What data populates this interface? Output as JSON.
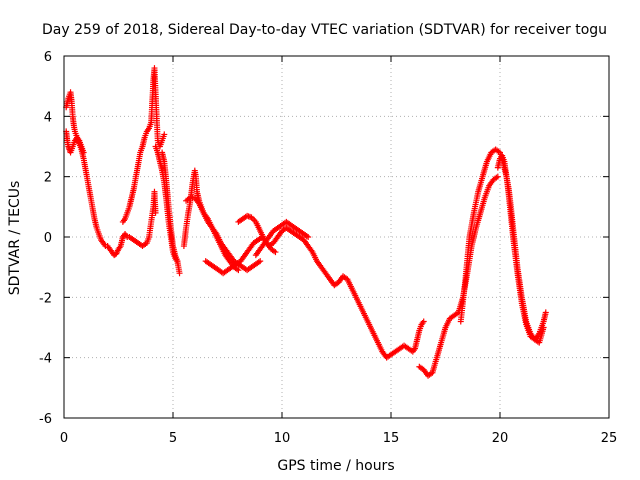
{
  "chart_data": {
    "type": "scatter",
    "title": "Day 259 of 2018, Sidereal Day-to-day VTEC variation (SDTVAR) for receiver togu",
    "xlabel": "GPS time / hours",
    "ylabel": "SDTVAR / TECUs",
    "xlim": [
      0,
      25
    ],
    "ylim": [
      -6,
      6
    ],
    "xticks": [
      0,
      5,
      10,
      15,
      20,
      25
    ],
    "yticks": [
      -6,
      -4,
      -2,
      0,
      2,
      4,
      6
    ],
    "xtick_labels": [
      "0",
      "5",
      "10",
      "15",
      "20",
      "25"
    ],
    "ytick_labels": [
      "-6",
      "-4",
      "-2",
      "0",
      "2",
      "4",
      "6"
    ],
    "grid": true,
    "marker": "+",
    "series": [
      {
        "name": "SDTVAR",
        "color": "#ff0000",
        "segments": [
          {
            "x": [
              0.1,
              0.2,
              0.3,
              0.35,
              0.4,
              0.45,
              0.5,
              0.6,
              0.7,
              0.8,
              0.9,
              1.0,
              1.1,
              1.2,
              1.3,
              1.4,
              1.5,
              1.6,
              1.7,
              1.8,
              1.9,
              2.0,
              2.1,
              2.2,
              2.3,
              2.4,
              2.5,
              2.6,
              2.7
            ],
            "y": [
              4.3,
              4.6,
              4.8,
              4.5,
              4.0,
              3.7,
              3.5,
              3.3,
              3.1,
              2.9,
              2.6,
              2.2,
              1.8,
              1.4,
              1.0,
              0.6,
              0.3,
              0.1,
              -0.1,
              -0.2,
              -0.3,
              -0.3,
              -0.4,
              -0.5,
              -0.6,
              -0.55,
              -0.4,
              -0.3,
              0.0
            ]
          },
          {
            "x": [
              0.1,
              0.15,
              0.2,
              0.25,
              0.3,
              0.4,
              0.5,
              0.6,
              0.7,
              0.8,
              0.9
            ],
            "y": [
              3.5,
              3.2,
              3.0,
              2.9,
              2.8,
              3.0,
              3.2,
              3.3,
              3.2,
              3.0,
              2.8
            ]
          },
          {
            "x": [
              2.7,
              2.8,
              2.9,
              3.0,
              3.1,
              3.2,
              3.3,
              3.4,
              3.5,
              3.6,
              3.7,
              3.8,
              3.9,
              4.0,
              4.05,
              4.1,
              4.15,
              4.2,
              4.25,
              4.3,
              4.4,
              4.5,
              4.6
            ],
            "y": [
              0.5,
              0.6,
              0.8,
              1.0,
              1.3,
              1.6,
              2.0,
              2.4,
              2.8,
              3.0,
              3.3,
              3.5,
              3.6,
              3.8,
              4.5,
              5.2,
              5.6,
              4.8,
              4.0,
              3.2,
              3.0,
              3.2,
              3.4
            ]
          },
          {
            "x": [
              2.7,
              2.8,
              2.9,
              3.0,
              3.2,
              3.4,
              3.6,
              3.8,
              3.9,
              4.0,
              4.1,
              4.15,
              4.2
            ],
            "y": [
              0.0,
              0.1,
              0.0,
              0.0,
              -0.1,
              -0.2,
              -0.3,
              -0.2,
              0.0,
              0.5,
              1.0,
              1.5,
              0.8
            ]
          },
          {
            "x": [
              4.2,
              4.3,
              4.4,
              4.5,
              4.6,
              4.7,
              4.8,
              4.9,
              5.0,
              5.1,
              5.2,
              5.3
            ],
            "y": [
              3.0,
              2.8,
              2.5,
              2.2,
              1.8,
              1.2,
              0.5,
              0.0,
              -0.5,
              -0.7,
              -0.8,
              -1.2
            ]
          },
          {
            "x": [
              4.5,
              4.6,
              4.7,
              4.8,
              4.9,
              5.0,
              5.1,
              5.2
            ],
            "y": [
              2.8,
              2.5,
              1.8,
              1.0,
              0.3,
              -0.3,
              -0.6,
              -0.8
            ]
          },
          {
            "x": [
              5.5,
              5.6,
              5.7,
              5.8,
              5.9,
              6.0,
              6.05,
              6.1,
              6.2,
              6.3,
              6.4,
              6.6,
              6.8,
              7.0,
              7.2,
              7.4,
              7.6,
              7.8,
              8.0
            ],
            "y": [
              -0.3,
              0.3,
              0.8,
              1.2,
              1.8,
              2.2,
              2.0,
              1.5,
              1.2,
              1.0,
              0.8,
              0.6,
              0.3,
              0.0,
              -0.3,
              -0.6,
              -0.8,
              -1.0,
              -1.1
            ]
          },
          {
            "x": [
              5.6,
              5.8,
              6.0,
              6.2,
              6.4,
              6.6,
              6.8,
              7.0,
              7.2,
              7.4,
              7.6,
              7.8,
              8.0,
              8.2,
              8.4,
              8.6,
              8.8,
              9.0
            ],
            "y": [
              1.2,
              1.3,
              1.3,
              1.1,
              0.8,
              0.5,
              0.3,
              0.1,
              -0.2,
              -0.4,
              -0.6,
              -0.8,
              -0.9,
              -1.0,
              -1.1,
              -1.0,
              -0.9,
              -0.8
            ]
          },
          {
            "x": [
              6.5,
              6.7,
              6.9,
              7.1,
              7.3,
              7.5,
              7.7,
              7.9,
              8.1,
              8.3,
              8.5,
              8.7,
              8.9,
              9.1,
              9.3,
              9.5,
              9.7
            ],
            "y": [
              -0.8,
              -0.9,
              -1.0,
              -1.1,
              -1.2,
              -1.1,
              -1.0,
              -0.9,
              -0.8,
              -0.6,
              -0.4,
              -0.2,
              -0.1,
              0.0,
              -0.2,
              -0.4,
              -0.5
            ]
          },
          {
            "x": [
              8.0,
              8.2,
              8.4,
              8.6,
              8.8,
              9.0,
              9.2,
              9.4,
              9.6,
              9.8,
              10.0,
              10.2,
              10.4,
              10.6,
              10.8,
              11.0,
              11.2,
              11.4,
              11.6,
              11.8,
              12.0,
              12.2,
              12.4,
              12.6,
              12.8,
              13.0,
              13.2,
              13.4,
              13.6,
              13.8,
              14.0,
              14.2,
              14.4,
              14.6,
              14.8,
              15.0
            ],
            "y": [
              0.5,
              0.6,
              0.7,
              0.65,
              0.5,
              0.2,
              -0.1,
              -0.3,
              -0.2,
              0.0,
              0.2,
              0.3,
              0.2,
              0.1,
              0.0,
              -0.1,
              -0.3,
              -0.5,
              -0.8,
              -1.0,
              -1.2,
              -1.4,
              -1.6,
              -1.5,
              -1.3,
              -1.4,
              -1.7,
              -2.0,
              -2.3,
              -2.6,
              -2.9,
              -3.2,
              -3.5,
              -3.8,
              -4.0,
              -3.9
            ]
          },
          {
            "x": [
              8.8,
              9.0,
              9.2,
              9.4,
              9.6,
              9.8,
              10.0,
              10.2,
              10.4,
              10.6,
              10.8,
              11.0,
              11.2
            ],
            "y": [
              -0.6,
              -0.4,
              -0.2,
              0.0,
              0.2,
              0.3,
              0.4,
              0.5,
              0.4,
              0.3,
              0.2,
              0.1,
              0.0
            ]
          },
          {
            "x": [
              15.0,
              15.2,
              15.4,
              15.6,
              15.8,
              16.0,
              16.1,
              16.2,
              16.3,
              16.4,
              16.5
            ],
            "y": [
              -3.9,
              -3.8,
              -3.7,
              -3.6,
              -3.7,
              -3.8,
              -3.7,
              -3.4,
              -3.1,
              -2.9,
              -2.8
            ]
          },
          {
            "x": [
              16.3,
              16.5,
              16.7,
              16.9,
              17.1,
              17.3,
              17.5,
              17.7,
              17.9,
              18.1,
              18.3,
              18.5,
              18.7,
              18.9,
              19.1,
              19.3,
              19.5,
              19.7,
              19.9
            ],
            "y": [
              -4.3,
              -4.4,
              -4.6,
              -4.5,
              -4.0,
              -3.5,
              -3.0,
              -2.7,
              -2.6,
              -2.5,
              -2.0,
              -1.2,
              -0.3,
              0.3,
              0.8,
              1.3,
              1.7,
              1.9,
              2.0
            ]
          },
          {
            "x": [
              18.2,
              18.4,
              18.6,
              18.8,
              19.0,
              19.2,
              19.4,
              19.6,
              19.8,
              20.0,
              20.1,
              20.2,
              20.3,
              20.4,
              20.5,
              20.6,
              20.8,
              21.0,
              21.2,
              21.4,
              21.6,
              21.8,
              22.0
            ],
            "y": [
              -2.8,
              -1.5,
              0.0,
              0.8,
              1.5,
              2.0,
              2.5,
              2.8,
              2.9,
              2.8,
              2.6,
              2.3,
              2.0,
              1.6,
              1.0,
              0.3,
              -1.0,
              -2.0,
              -2.8,
              -3.2,
              -3.4,
              -3.5,
              -3.0
            ]
          },
          {
            "x": [
              19.9,
              20.0,
              20.1,
              20.2,
              20.3,
              20.4,
              20.5,
              20.6,
              20.8,
              21.0,
              21.2,
              21.4,
              21.6,
              21.8,
              22.0,
              22.1
            ],
            "y": [
              2.3,
              2.6,
              2.7,
              2.5,
              2.0,
              1.4,
              0.7,
              0.0,
              -1.2,
              -2.2,
              -2.9,
              -3.3,
              -3.4,
              -3.2,
              -2.8,
              -2.5
            ]
          }
        ]
      }
    ]
  }
}
